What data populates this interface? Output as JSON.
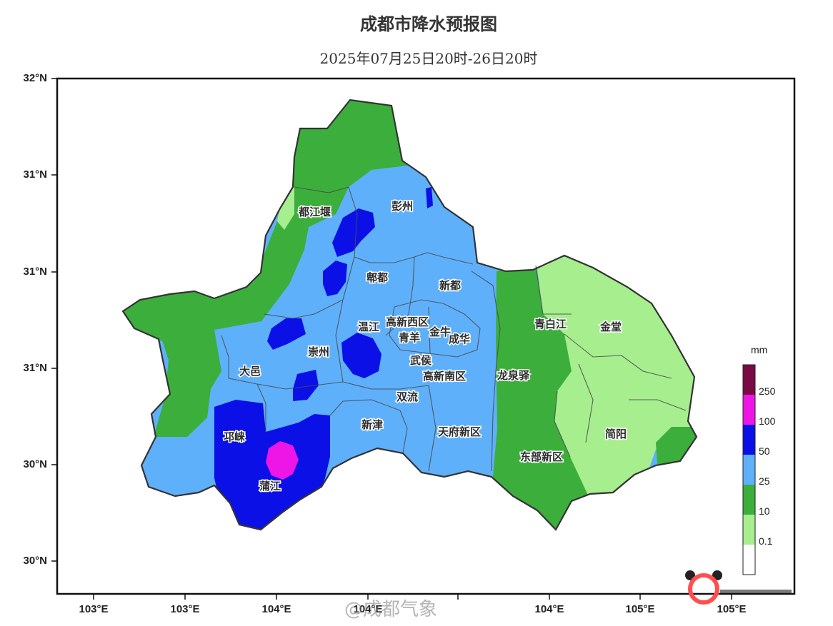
{
  "title": "成都市降水预报图",
  "subtitle": "2025年07月25日20时-26日20时",
  "axes": {
    "y_ticks": [
      "32°N",
      "31°N",
      "31°N",
      "31°N",
      "30°N",
      "30°N"
    ],
    "x_ticks": [
      "103°E",
      "103°E",
      "104°E",
      "104°E",
      "104°E",
      "105°E",
      "105°E"
    ]
  },
  "districts": [
    "都江堰",
    "彭州",
    "郫都",
    "新都",
    "温江",
    "高新西区",
    "青羊",
    "金牛",
    "成华",
    "崇州",
    "大邑",
    "武侯",
    "高新南区",
    "双流",
    "新津",
    "天府新区",
    "邛崃",
    "蒲江",
    "青白江",
    "金堂",
    "龙泉驿",
    "东部新区",
    "简阳"
  ],
  "legend": {
    "unit": "mm",
    "levels": [
      "250",
      "100",
      "50",
      "25",
      "10",
      "0.1"
    ],
    "colors": {
      "level_250": "#7a0a44",
      "level_100": "#ee16e6",
      "level_50": "#0a10e6",
      "level_25": "#5fb0fb",
      "level_10": "#3cae3c",
      "level_0_1": "#a6ee8e",
      "level_0": "#ffffff"
    }
  },
  "watermark": "@成都气象"
}
